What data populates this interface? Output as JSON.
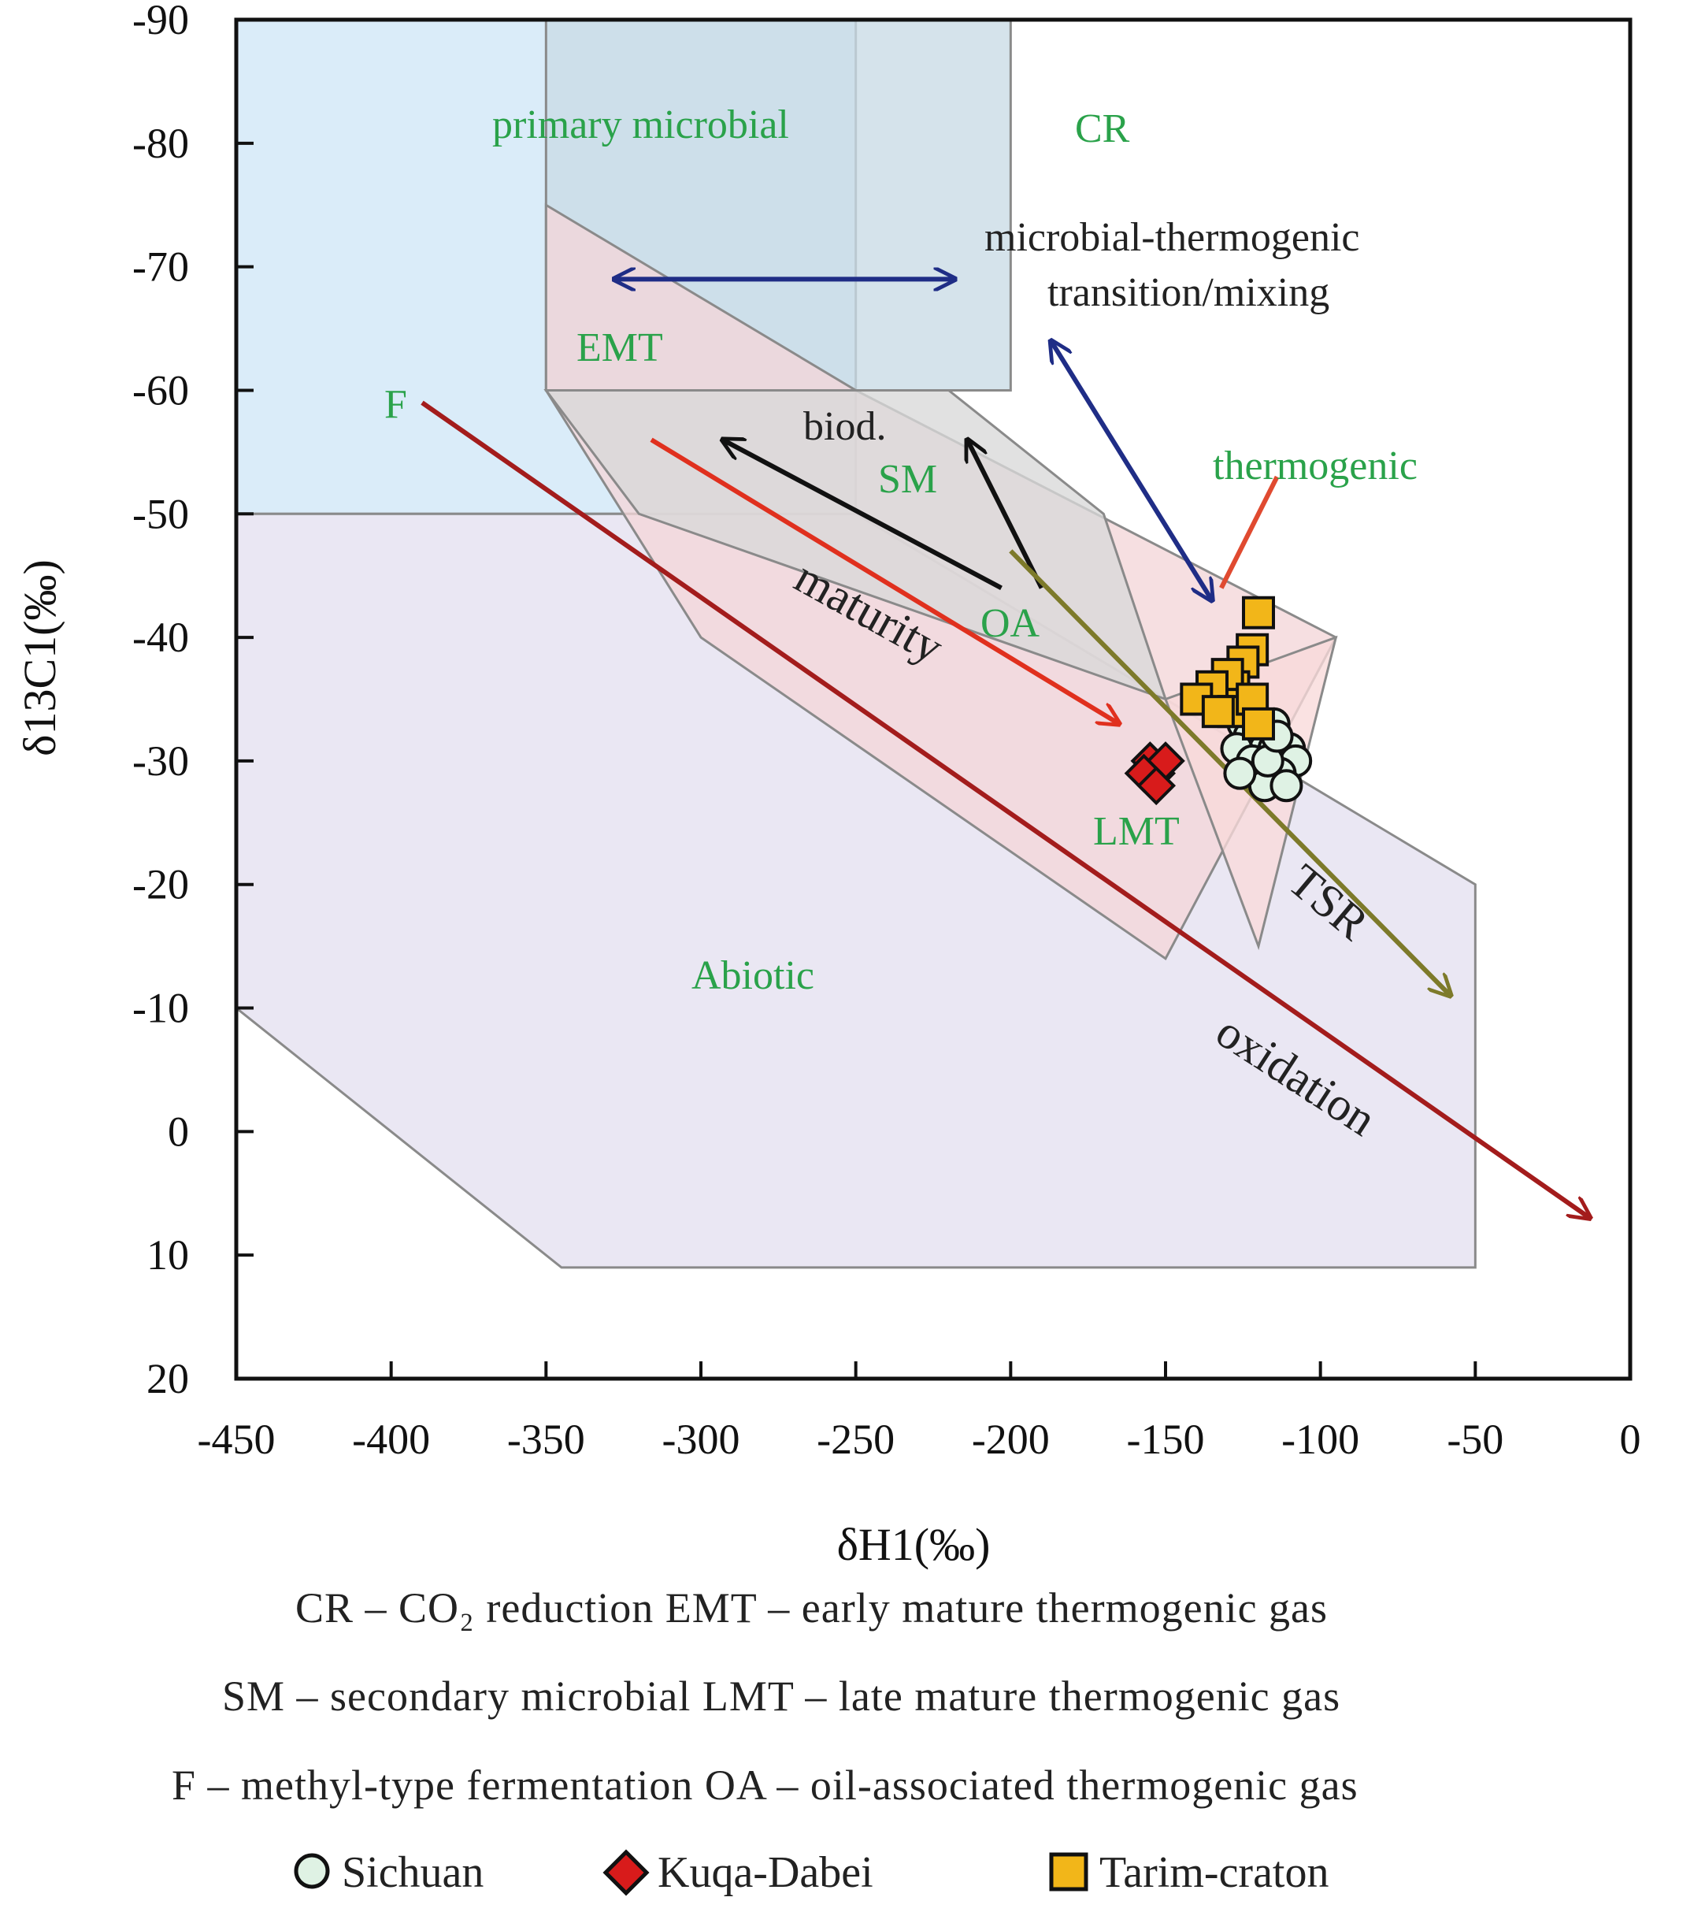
{
  "chart_data": {
    "type": "scatter",
    "xlabel": "δH1(‰)",
    "ylabel": "δ13C1(‰)",
    "xlim": [
      -450,
      0
    ],
    "ylim": [
      20,
      -90
    ],
    "y_reversed": true,
    "x_ticks": [
      "-450",
      "-400",
      "-350",
      "-300",
      "-250",
      "-200",
      "-150",
      "-100",
      "-50",
      "0"
    ],
    "y_ticks": [
      "-90",
      "-80",
      "-70",
      "-60",
      "-50",
      "-40",
      "-30",
      "-20",
      "-10",
      "0",
      "10",
      "20"
    ],
    "regions": [
      {
        "name": "primary microbial",
        "color": "#cfe7f7",
        "polygon": [
          [
            -450,
            -90
          ],
          [
            -250,
            -90
          ],
          [
            -250,
            -50
          ],
          [
            -450,
            -50
          ]
        ]
      },
      {
        "name": "CR",
        "color": "#c9dbe6",
        "polygon": [
          [
            -350,
            -90
          ],
          [
            -200,
            -90
          ],
          [
            -200,
            -60
          ],
          [
            -350,
            -60
          ]
        ]
      },
      {
        "name": "Abiotic",
        "color": "#e4e0ef",
        "polygon": [
          [
            -450,
            -50
          ],
          [
            -250,
            -50
          ],
          [
            -50,
            -20
          ],
          [
            -50,
            11
          ],
          [
            -345,
            11
          ],
          [
            -450,
            -10
          ]
        ]
      },
      {
        "name": "EMT",
        "color": "#f3d6d8",
        "polygon": [
          [
            -350,
            -75
          ],
          [
            -350,
            -60
          ],
          [
            -300,
            -40
          ],
          [
            -150,
            -14
          ],
          [
            -95,
            -40
          ],
          [
            -250,
            -60
          ]
        ]
      },
      {
        "name": "SM",
        "color": "#d9d9d9",
        "polygon": [
          [
            -350,
            -60
          ],
          [
            -220,
            -60
          ],
          [
            -170,
            -50
          ],
          [
            -150,
            -35
          ],
          [
            -320,
            -50
          ]
        ]
      },
      {
        "name": "thermogenic",
        "color": "#f8dada",
        "polygon": [
          [
            -150,
            -35
          ],
          [
            -95,
            -40
          ],
          [
            -120,
            -15
          ]
        ]
      }
    ],
    "region_labels": [
      "primary microbial",
      "CR",
      "EMT",
      "SM",
      "OA",
      "LMT",
      "Abiotic",
      "thermogenic",
      "F"
    ],
    "annotations": [
      "microbial-thermogenic",
      "transition/mixing",
      "biod."
    ],
    "process_labels": [
      "maturity",
      "TSR",
      "oxidation"
    ],
    "arrows": [
      {
        "color": "#1f2d86",
        "from": [
          -328,
          -69
        ],
        "to": [
          -218,
          -69
        ],
        "double": true
      },
      {
        "color": "#1f2d86",
        "from": [
          -187,
          -64
        ],
        "to": [
          -135,
          -43
        ],
        "double": true
      },
      {
        "color": "#111111",
        "from": [
          -203,
          -44
        ],
        "to": [
          -293,
          -56
        ]
      },
      {
        "color": "#111111",
        "from": [
          -190,
          -44
        ],
        "to": [
          -214,
          -56
        ]
      },
      {
        "color": "#e0301e",
        "from": [
          -316,
          -56
        ],
        "to": [
          -165,
          -33
        ]
      },
      {
        "color": "#7d7a2a",
        "from": [
          -200,
          -47
        ],
        "to": [
          -58,
          -11
        ]
      },
      {
        "color": "#a31c1c",
        "from": [
          -390,
          -59
        ],
        "to": [
          -13,
          7
        ]
      },
      {
        "color": "#e04a30",
        "from": [
          -132,
          -44
        ],
        "to": [
          -114,
          -53
        ],
        "head": false
      }
    ],
    "series": [
      {
        "name": "Sichuan",
        "marker": "circle",
        "color": "#dff2e4",
        "x": [
          -130,
          -125,
          -123,
          -120,
          -118,
          -115,
          -115,
          -112,
          -110,
          -108,
          -127,
          -122,
          -113,
          -118,
          -111,
          -126,
          -117,
          -114
        ],
        "y": [
          -34,
          -33,
          -32,
          -32,
          -31,
          -31,
          -33,
          -30,
          -31,
          -30,
          -31,
          -30,
          -29,
          -28,
          -28,
          -29,
          -30,
          -32
        ]
      },
      {
        "name": "Kuqa-Dabei",
        "marker": "diamond",
        "color": "#d81b1b",
        "x": [
          -155,
          -153,
          -150,
          -157,
          -153
        ],
        "y": [
          -30,
          -29,
          -30,
          -29,
          -28
        ]
      },
      {
        "name": "Tarim-craton",
        "marker": "square",
        "color": "#f2b619",
        "x": [
          -120,
          -122,
          -125,
          -128,
          -130,
          -135,
          -140,
          -128,
          -122,
          -133,
          -120
        ],
        "y": [
          -42,
          -39,
          -38,
          -36,
          -37,
          -36,
          -35,
          -34,
          -35,
          -34,
          -33
        ]
      }
    ],
    "legend_notes": [
      "CR – CO₂ reduction    EMT – early mature thermogenic gas",
      "SM – secondary microbial    LMT – late mature thermogenic gas",
      "F – methyl-type fermentation    OA – oil-associated thermogenic gas"
    ]
  }
}
